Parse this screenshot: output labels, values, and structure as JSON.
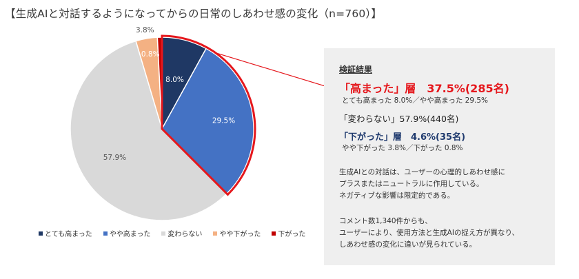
{
  "title": "【生成AIと対話するようになってからの日常のしあわせ感の変化（n=760）】",
  "chart_data": {
    "type": "pie",
    "start": "12 o'clock, clockwise",
    "slices": [
      {
        "name": "とても高まった",
        "value": 8.0,
        "label": "8.0%",
        "color": "#1f3864"
      },
      {
        "name": "やや高まった",
        "value": 29.5,
        "label": "29.5%",
        "color": "#4472c4"
      },
      {
        "name": "変わらない",
        "value": 57.9,
        "label": "57.9%",
        "color": "#d9d9d9"
      },
      {
        "name": "やや下がった",
        "value": 3.8,
        "label": "3.8%",
        "color": "#f4b183"
      },
      {
        "name": "下がった",
        "value": 0.8,
        "label": "0.8%",
        "color": "#c00000"
      }
    ],
    "highlight": {
      "slices": [
        "とても高まった",
        "やや高まった"
      ],
      "outline_color": "#e5171c"
    }
  },
  "legend": [
    {
      "label": "とても高まった",
      "color": "#1f3864"
    },
    {
      "label": "やや高まった",
      "color": "#4472c4"
    },
    {
      "label": "変わらない",
      "color": "#d9d9d9"
    },
    {
      "label": "やや下がった",
      "color": "#f4b183"
    },
    {
      "label": "下がった",
      "color": "#c00000"
    }
  ],
  "panel": {
    "heading": "検証結果",
    "up_line": "「高まった」層　37.5%(285名)",
    "up_sub": "とても高まった 8.0%／やや高まった 29.5%",
    "mid_line": "「変わらない」57.9%(440名)",
    "down_line": "「下がった」層　4.6%(35名)",
    "down_sub": "やや下がった 3.8%／下がった 0.8%",
    "para1": [
      "生成AIとの対話は、ユーザーの心理的しあわせ感に",
      "プラスまたはニュートラルに作用している。",
      "ネガティブな影響は限定的である。"
    ],
    "para2": [
      "コメント数1,340件からも、",
      "ユーザーにより、使用方法と生成AIの捉え方が異なり、",
      "しあわせ感の変化に違いが見られている。"
    ]
  }
}
